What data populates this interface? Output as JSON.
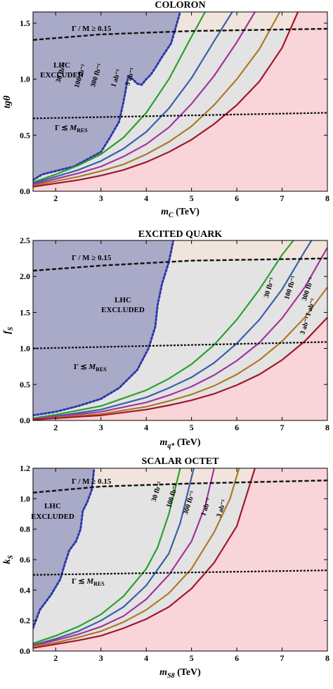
{
  "chart_data": [
    {
      "type": "line",
      "title": "COLORON",
      "xlabel": "m_C (TeV)",
      "ylabel": "tgθ",
      "xlim": [
        1.5,
        8
      ],
      "ylim": [
        0,
        1.6
      ],
      "xticks": [
        "2",
        "3",
        "4",
        "5",
        "6",
        "7",
        "8"
      ],
      "xtick_values": [
        2,
        3,
        4,
        5,
        6,
        7,
        8
      ],
      "yticks": [
        "0.0",
        "0.5",
        "1.0",
        "1.5"
      ],
      "ytick_values": [
        0,
        0.5,
        1.0,
        1.5
      ],
      "width_line": {
        "label": "Γ / M ≥ 0.15",
        "x": [
          1.5,
          3,
          5,
          8
        ],
        "y": [
          1.35,
          1.4,
          1.43,
          1.45
        ]
      },
      "res_line": {
        "label": "Γ ≲ M_RES",
        "x": [
          1.5,
          8
        ],
        "y": [
          0.65,
          0.7
        ]
      },
      "excluded": {
        "label": [
          "LHC",
          "EXCLUDED"
        ],
        "x": [
          1.5,
          1.7,
          2.4,
          3.0,
          3.2,
          3.4,
          3.5,
          3.6,
          3.7,
          3.8,
          3.9,
          4.0,
          4.1,
          4.2,
          4.35,
          4.55,
          4.75
        ],
        "y": [
          0.1,
          0.15,
          0.22,
          0.35,
          0.48,
          0.62,
          0.8,
          1.02,
          1.0,
          0.96,
          0.95,
          1.0,
          1.04,
          1.1,
          1.2,
          1.32,
          1.6
        ]
      },
      "series": [
        {
          "name": "30 fb⁻¹",
          "color": "#2ca02c",
          "x": [
            1.5,
            2,
            2.5,
            3,
            3.5,
            4,
            4.5,
            5,
            5.3
          ],
          "y": [
            0.08,
            0.15,
            0.23,
            0.33,
            0.48,
            0.7,
            1.0,
            1.38,
            1.6
          ]
        },
        {
          "name": "100 fb⁻¹",
          "color": "#3b5fa8",
          "x": [
            1.5,
            2,
            2.5,
            3,
            3.5,
            4,
            4.5,
            5,
            5.5,
            5.9
          ],
          "y": [
            0.07,
            0.13,
            0.19,
            0.27,
            0.38,
            0.53,
            0.74,
            1.01,
            1.34,
            1.6
          ]
        },
        {
          "name": "300 fb⁻¹",
          "color": "#a632a0",
          "x": [
            1.5,
            2,
            2.5,
            3,
            3.5,
            4,
            4.5,
            5,
            5.5,
            6,
            6.4
          ],
          "y": [
            0.06,
            0.11,
            0.16,
            0.22,
            0.31,
            0.42,
            0.57,
            0.78,
            1.03,
            1.33,
            1.6
          ]
        },
        {
          "name": "1 ab⁻¹",
          "color": "#b0782a",
          "x": [
            1.5,
            2,
            2.5,
            3,
            3.5,
            4,
            4.5,
            5,
            5.5,
            6,
            6.5,
            6.95
          ],
          "y": [
            0.05,
            0.09,
            0.13,
            0.18,
            0.24,
            0.33,
            0.44,
            0.58,
            0.77,
            1.0,
            1.27,
            1.6
          ]
        },
        {
          "name": "3 ab⁻¹",
          "color": "#a3162a",
          "x": [
            1.5,
            2,
            2.5,
            3,
            3.5,
            4,
            4.5,
            5,
            5.5,
            6,
            6.5,
            7,
            7.35
          ],
          "y": [
            0.04,
            0.07,
            0.1,
            0.14,
            0.19,
            0.26,
            0.35,
            0.46,
            0.6,
            0.77,
            0.98,
            1.28,
            1.6
          ]
        }
      ]
    },
    {
      "type": "line",
      "title": "EXCITED QUARK",
      "xlabel": "m_q* (TeV)",
      "ylabel": "f_S",
      "xlim": [
        1.5,
        8
      ],
      "ylim": [
        0,
        2.5
      ],
      "xticks": [
        "2",
        "3",
        "4",
        "5",
        "6",
        "7",
        "8"
      ],
      "xtick_values": [
        2,
        3,
        4,
        5,
        6,
        7,
        8
      ],
      "yticks": [
        "0.0",
        "0.5",
        "1.0",
        "1.5",
        "2.0",
        "2.5"
      ],
      "ytick_values": [
        0,
        0.5,
        1.0,
        1.5,
        2.0,
        2.5
      ],
      "width_line": {
        "label": "Γ / M ≥ 0.15",
        "x": [
          1.5,
          3,
          5,
          8
        ],
        "y": [
          2.08,
          2.15,
          2.22,
          2.25
        ]
      },
      "res_line": {
        "label": "Γ ≲ M_RES",
        "x": [
          1.5,
          8
        ],
        "y": [
          1.0,
          1.09
        ]
      },
      "excluded": {
        "label": [
          "LHC",
          "EXCLUDED"
        ],
        "x": [
          1.5,
          2.0,
          2.5,
          3.0,
          3.4,
          3.8,
          4.05,
          4.2,
          4.25,
          4.35,
          4.5,
          4.6
        ],
        "y": [
          0.07,
          0.12,
          0.2,
          0.3,
          0.45,
          0.7,
          1.0,
          1.3,
          1.6,
          1.9,
          2.2,
          2.5
        ]
      },
      "series": [
        {
          "name": "30 fb⁻¹",
          "color": "#2ca02c",
          "x": [
            1.5,
            2,
            3,
            4,
            4.5,
            5,
            5.5,
            6,
            6.5,
            7,
            7.25
          ],
          "y": [
            0.03,
            0.08,
            0.2,
            0.42,
            0.58,
            0.78,
            1.05,
            1.4,
            1.82,
            2.3,
            2.5
          ]
        },
        {
          "name": "100 fb⁻¹",
          "color": "#3b5fa8",
          "x": [
            1.5,
            2,
            3,
            4,
            4.5,
            5,
            5.5,
            6,
            6.5,
            7,
            7.5,
            7.65
          ],
          "y": [
            0.02,
            0.06,
            0.15,
            0.32,
            0.45,
            0.6,
            0.8,
            1.07,
            1.4,
            1.82,
            2.35,
            2.5
          ]
        },
        {
          "name": "300 fb⁻¹",
          "color": "#a632a0",
          "x": [
            1.5,
            2,
            3,
            4,
            4.5,
            5,
            5.5,
            6,
            6.5,
            7,
            7.5,
            8
          ],
          "y": [
            0.02,
            0.05,
            0.12,
            0.25,
            0.35,
            0.47,
            0.63,
            0.83,
            1.08,
            1.42,
            1.85,
            2.4
          ]
        },
        {
          "name": "1 ab⁻¹",
          "color": "#b0782a",
          "x": [
            1.5,
            2,
            3,
            4,
            4.5,
            5,
            5.5,
            6,
            6.5,
            7,
            7.5,
            8
          ],
          "y": [
            0.01,
            0.04,
            0.09,
            0.19,
            0.27,
            0.36,
            0.48,
            0.64,
            0.84,
            1.1,
            1.43,
            1.85
          ]
        },
        {
          "name": "3 ab⁻¹",
          "color": "#a3162a",
          "x": [
            1.5,
            2,
            3,
            4,
            4.5,
            5,
            5.5,
            6,
            6.5,
            7,
            7.5,
            8
          ],
          "y": [
            0.01,
            0.03,
            0.07,
            0.15,
            0.21,
            0.28,
            0.37,
            0.49,
            0.64,
            0.84,
            1.1,
            1.43
          ]
        }
      ]
    },
    {
      "type": "line",
      "title": "SCALAR OCTET",
      "xlabel": "m_S8 (TeV)",
      "ylabel": "k_S",
      "xlim": [
        1.5,
        8
      ],
      "ylim": [
        0,
        1.2
      ],
      "xticks": [
        "2",
        "3",
        "4",
        "5",
        "6",
        "7",
        "8"
      ],
      "xtick_values": [
        2,
        3,
        4,
        5,
        6,
        7,
        8
      ],
      "yticks": [
        "0.0",
        "0.2",
        "0.4",
        "0.6",
        "0.8",
        "1.0",
        "1.2"
      ],
      "ytick_values": [
        0,
        0.2,
        0.4,
        0.6,
        0.8,
        1.0,
        1.2
      ],
      "width_line": {
        "label": "Γ / M ≥ 0.15",
        "x": [
          1.5,
          3,
          5,
          8
        ],
        "y": [
          1.04,
          1.08,
          1.1,
          1.12
        ]
      },
      "res_line": {
        "label": "Γ ≲ M_RES",
        "x": [
          1.5,
          8
        ],
        "y": [
          0.5,
          0.53
        ]
      },
      "excluded": {
        "label": [
          "LHC",
          "EXCLUDED"
        ],
        "x": [
          1.5,
          1.65,
          1.9,
          2.1,
          2.2,
          2.3,
          2.45,
          2.55,
          2.6,
          2.7,
          2.8,
          2.85
        ],
        "y": [
          0.15,
          0.27,
          0.37,
          0.47,
          0.57,
          0.66,
          0.72,
          0.8,
          0.92,
          0.98,
          1.06,
          1.2
        ]
      },
      "series": [
        {
          "name": "30 fb⁻¹",
          "color": "#2ca02c",
          "x": [
            1.5,
            2,
            2.5,
            3,
            3.5,
            4,
            4.25,
            4.5,
            4.75
          ],
          "y": [
            0.05,
            0.1,
            0.16,
            0.24,
            0.36,
            0.54,
            0.68,
            0.9,
            1.2
          ]
        },
        {
          "name": "100 fb⁻¹",
          "color": "#3b5fa8",
          "x": [
            1.5,
            2,
            2.5,
            3,
            3.5,
            4,
            4.5,
            4.75,
            5.05
          ],
          "y": [
            0.04,
            0.08,
            0.13,
            0.2,
            0.29,
            0.43,
            0.64,
            0.84,
            1.2
          ]
        },
        {
          "name": "300 fb⁻¹",
          "color": "#a632a0",
          "x": [
            1.5,
            2,
            2.5,
            3,
            3.5,
            4,
            4.5,
            5,
            5.3,
            5.5
          ],
          "y": [
            0.035,
            0.07,
            0.11,
            0.16,
            0.23,
            0.34,
            0.5,
            0.72,
            0.95,
            1.2
          ]
        },
        {
          "name": "1 ab⁻¹",
          "color": "#b0782a",
          "x": [
            1.5,
            2,
            2.5,
            3,
            3.5,
            4,
            4.5,
            5,
            5.5,
            5.85,
            6.05
          ],
          "y": [
            0.03,
            0.055,
            0.09,
            0.13,
            0.19,
            0.27,
            0.38,
            0.54,
            0.78,
            1.0,
            1.2
          ]
        },
        {
          "name": "3 ab⁻¹",
          "color": "#a3162a",
          "x": [
            1.5,
            2,
            2.5,
            3,
            3.5,
            4,
            4.5,
            5,
            5.5,
            6,
            6.4
          ],
          "y": [
            0.02,
            0.045,
            0.07,
            0.1,
            0.15,
            0.21,
            0.29,
            0.41,
            0.58,
            0.82,
            1.2
          ]
        }
      ]
    }
  ]
}
